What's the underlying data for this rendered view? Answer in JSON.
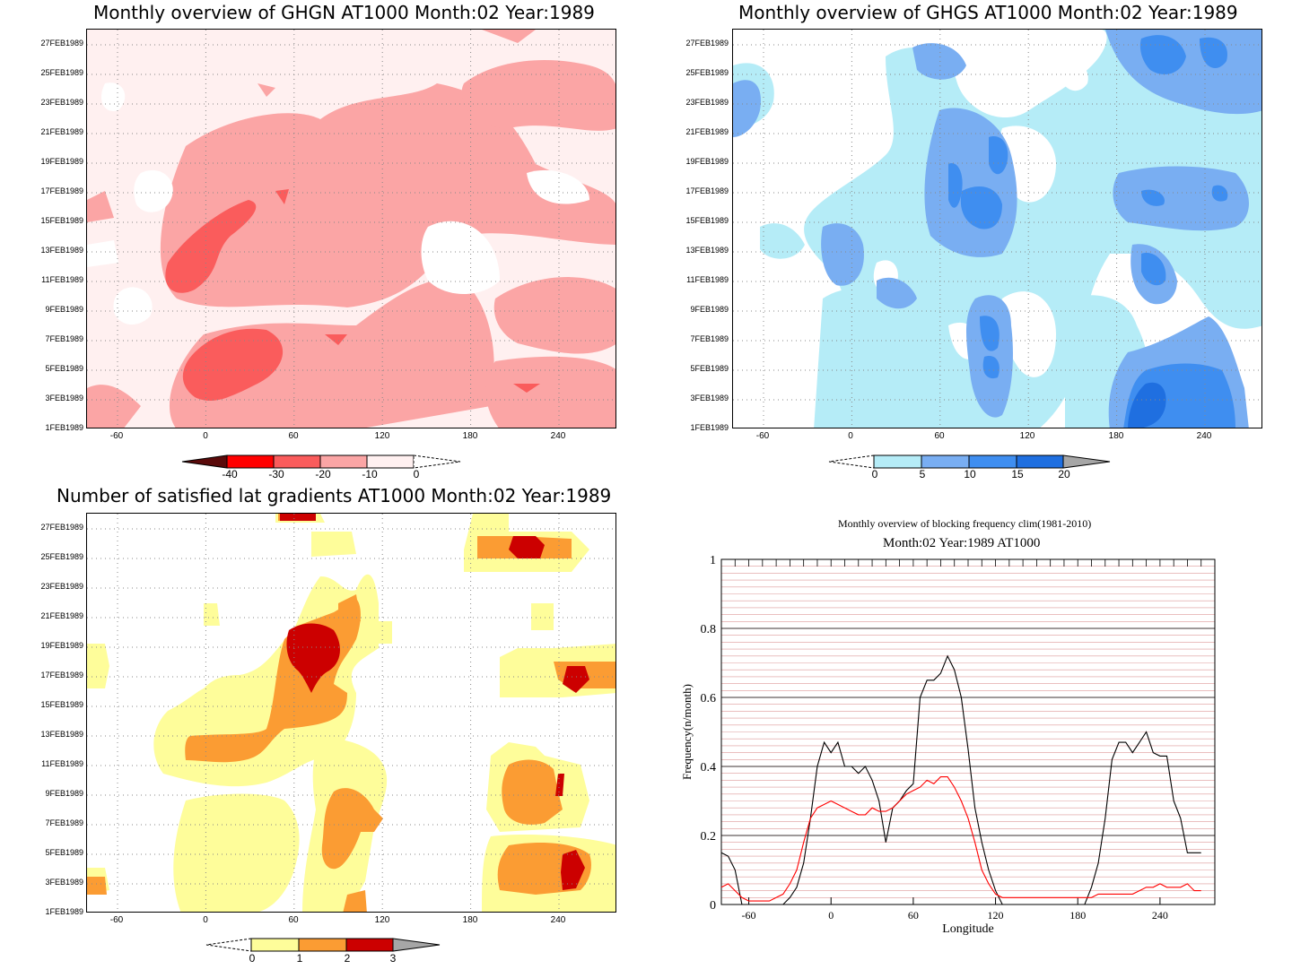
{
  "panels": {
    "ghgn": {
      "title": "Monthly overview of GHGN AT1000 Month:02 Year:1989",
      "colorbar_labels": [
        "-40",
        "-30",
        "-20",
        "-10",
        "0"
      ],
      "colors": [
        "#5a0a0a",
        "#ff0000",
        "#fa5c5c",
        "#fba5a5",
        "#fff0f0"
      ]
    },
    "ghgs": {
      "title": "Monthly overview of GHGS AT1000 Month:02 Year:1989",
      "colorbar_labels": [
        "0",
        "5",
        "10",
        "15",
        "20"
      ],
      "colors": [
        "#b5ecf7",
        "#79aef2",
        "#3f8ef0",
        "#1f6fe0",
        "#a6a6a6"
      ]
    },
    "grad": {
      "title": "Number of satisfied lat gradients AT1000 Month:02 Year:1989",
      "colorbar_labels": [
        "0",
        "1",
        "2",
        "3"
      ],
      "colors": [
        "#fefd9a",
        "#fb9c33",
        "#cc0000",
        "#a6a6a6"
      ]
    },
    "freq": {
      "title": "Monthly overview of blocking frequency clim(1981-2010)",
      "subtitle": "Month:02 Year:1989  AT1000",
      "ylabel": "Frequency(n/month)",
      "xlabel": "Longitude",
      "yticks": [
        "0",
        "0.2",
        "0.4",
        "0.6",
        "0.8",
        "1"
      ],
      "xticks": [
        "-60",
        "0",
        "60",
        "120",
        "180",
        "240"
      ]
    }
  },
  "date_labels": [
    "1FEB1989",
    "3FEB1989",
    "5FEB1989",
    "7FEB1989",
    "9FEB1989",
    "11FEB1989",
    "13FEB1989",
    "15FEB1989",
    "17FEB1989",
    "19FEB1989",
    "21FEB1989",
    "23FEB1989",
    "25FEB1989",
    "27FEB1989"
  ],
  "lon_labels": [
    "-60",
    "0",
    "60",
    "120",
    "180",
    "240"
  ],
  "chart_data": [
    {
      "type": "heatmap",
      "title": "Monthly overview of GHGN AT1000 Month:02 Year:1989",
      "x_axis": "longitude",
      "xlim": [
        -80,
        280
      ],
      "y_axis": "date",
      "ylim": [
        "1FEB1989",
        "28FEB1989"
      ],
      "levels": [
        -40,
        -30,
        -20,
        -10,
        0
      ],
      "note_regions": [
        {
          "level": "-20 to -10",
          "lon": [
            -20,
            110
          ],
          "dates": [
            "13FEB1989",
            "20FEB1989"
          ]
        },
        {
          "level": "-30 to -20",
          "lon": [
            -25,
            30
          ],
          "dates": [
            "11FEB1989",
            "15FEB1989"
          ]
        },
        {
          "level": "-30 to -20",
          "lon": [
            -15,
            40
          ],
          "dates": [
            "3FEB1989",
            "7FEB1989"
          ]
        },
        {
          "level": "-20 to -10",
          "lon": [
            180,
            270
          ],
          "dates": [
            "24FEB1989",
            "27FEB1989"
          ]
        }
      ]
    },
    {
      "type": "heatmap",
      "title": "Monthly overview of GHGS AT1000 Month:02 Year:1989",
      "x_axis": "longitude",
      "xlim": [
        -80,
        280
      ],
      "y_axis": "date",
      "ylim": [
        "1FEB1989",
        "28FEB1989"
      ],
      "levels": [
        0,
        5,
        10,
        15,
        20
      ],
      "note_regions": [
        {
          "level": "10-15",
          "lon": [
            60,
            110
          ],
          "dates": [
            "13FEB1989",
            "19FEB1989"
          ]
        },
        {
          "level": "10-15",
          "lon": [
            80,
            110
          ],
          "dates": [
            "4FEB1989",
            "8FEB1989"
          ]
        },
        {
          "level": "15-20",
          "lon": [
            190,
            270
          ],
          "dates": [
            "1FEB1989",
            "5FEB1989"
          ]
        },
        {
          "level": "10-15",
          "lon": [
            175,
            270
          ],
          "dates": [
            "14FEB1989",
            "18FEB1989"
          ]
        },
        {
          "level": "10-15",
          "lon": [
            170,
            270
          ],
          "dates": [
            "25FEB1989",
            "28FEB1989"
          ]
        }
      ]
    },
    {
      "type": "heatmap",
      "title": "Number of satisfied lat gradients AT1000 Month:02 Year:1989",
      "x_axis": "longitude",
      "xlim": [
        -80,
        280
      ],
      "y_axis": "date",
      "ylim": [
        "1FEB1989",
        "28FEB1989"
      ],
      "levels": [
        0,
        1,
        2,
        3
      ],
      "note_regions": [
        {
          "level": "2-3",
          "lon": [
            50,
            90
          ],
          "dates": [
            "18FEB1989",
            "20FEB1989"
          ]
        },
        {
          "level": "1-2",
          "lon": [
            40,
            100
          ],
          "dates": [
            "13FEB1989",
            "20FEB1989"
          ]
        },
        {
          "level": "2-3",
          "lon": [
            200,
            225
          ],
          "dates": [
            "25FEB1989",
            "26FEB1989"
          ]
        },
        {
          "level": "2-3",
          "lon": [
            240,
            260
          ],
          "dates": [
            "3FEB1989",
            "4FEB1989"
          ]
        },
        {
          "level": "2-3",
          "lon": [
            235,
            255
          ],
          "dates": [
            "17FEB1989",
            "18FEB1989"
          ]
        }
      ]
    },
    {
      "type": "line",
      "title": "Monthly overview of blocking frequency clim(1981-2010)",
      "subtitle": "Month:02 Year:1989  AT1000",
      "xlabel": "Longitude",
      "ylabel": "Frequency(n/month)",
      "xlim": [
        -80,
        280
      ],
      "ylim": [
        0,
        1
      ],
      "grid": true,
      "series": [
        {
          "color": "#000000",
          "x": [
            -80,
            -75,
            -70,
            -65,
            -60,
            -55,
            -50,
            -45,
            -40,
            -35,
            -30,
            -25,
            -20,
            -15,
            -10,
            -5,
            0,
            5,
            10,
            15,
            20,
            25,
            30,
            35,
            40,
            45,
            50,
            55,
            60,
            65,
            70,
            75,
            80,
            85,
            90,
            95,
            100,
            105,
            110,
            115,
            120,
            125,
            130,
            135,
            140,
            145,
            150,
            155,
            160,
            165,
            170,
            175,
            180,
            185,
            190,
            195,
            200,
            205,
            210,
            215,
            220,
            225,
            230,
            235,
            240,
            245,
            250,
            255,
            260,
            265,
            270
          ],
          "y": [
            0.15,
            0.14,
            0.1,
            0.0,
            0.0,
            0.0,
            0.0,
            0.0,
            0.0,
            0.0,
            0.02,
            0.05,
            0.12,
            0.25,
            0.4,
            0.47,
            0.44,
            0.47,
            0.4,
            0.4,
            0.38,
            0.4,
            0.36,
            0.3,
            0.18,
            0.28,
            0.3,
            0.33,
            0.35,
            0.6,
            0.65,
            0.65,
            0.67,
            0.72,
            0.68,
            0.6,
            0.45,
            0.28,
            0.18,
            0.1,
            0.04,
            0.0,
            0.0,
            0.0,
            0.0,
            0.0,
            0.0,
            0.0,
            0.0,
            0.0,
            0.0,
            0.0,
            0.0,
            0.0,
            0.05,
            0.12,
            0.25,
            0.42,
            0.47,
            0.47,
            0.44,
            0.47,
            0.5,
            0.44,
            0.43,
            0.43,
            0.3,
            0.25,
            0.15,
            0.15,
            0.15
          ]
        },
        {
          "color": "#ff0000",
          "x": [
            -80,
            -75,
            -70,
            -65,
            -60,
            -55,
            -50,
            -45,
            -40,
            -35,
            -30,
            -25,
            -20,
            -15,
            -10,
            -5,
            0,
            5,
            10,
            15,
            20,
            25,
            30,
            35,
            40,
            45,
            50,
            55,
            60,
            65,
            70,
            75,
            80,
            85,
            90,
            95,
            100,
            105,
            110,
            115,
            120,
            125,
            130,
            135,
            140,
            145,
            150,
            155,
            160,
            165,
            170,
            175,
            180,
            185,
            190,
            195,
            200,
            205,
            210,
            215,
            220,
            225,
            230,
            235,
            240,
            245,
            250,
            255,
            260,
            265,
            270
          ],
          "y": [
            0.05,
            0.06,
            0.04,
            0.02,
            0.01,
            0.01,
            0.01,
            0.01,
            0.02,
            0.03,
            0.06,
            0.1,
            0.18,
            0.25,
            0.28,
            0.29,
            0.3,
            0.29,
            0.28,
            0.27,
            0.26,
            0.26,
            0.28,
            0.27,
            0.27,
            0.28,
            0.3,
            0.32,
            0.33,
            0.34,
            0.36,
            0.35,
            0.37,
            0.37,
            0.34,
            0.3,
            0.25,
            0.18,
            0.1,
            0.06,
            0.03,
            0.02,
            0.02,
            0.02,
            0.02,
            0.02,
            0.02,
            0.02,
            0.02,
            0.02,
            0.02,
            0.02,
            0.02,
            0.02,
            0.02,
            0.03,
            0.03,
            0.03,
            0.03,
            0.03,
            0.03,
            0.04,
            0.05,
            0.05,
            0.06,
            0.05,
            0.05,
            0.05,
            0.06,
            0.04,
            0.04
          ]
        }
      ]
    }
  ]
}
